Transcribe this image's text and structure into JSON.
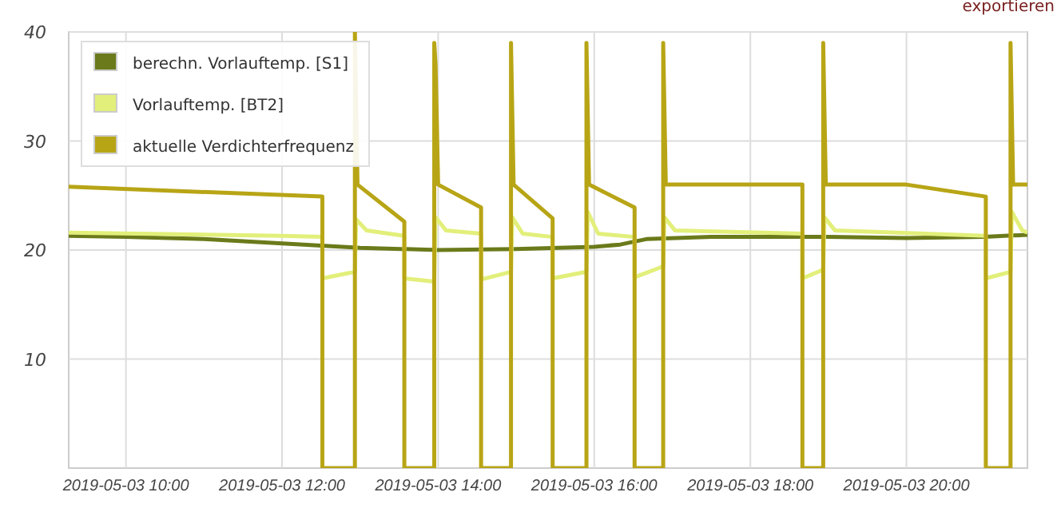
{
  "chart_data": {
    "type": "line",
    "xlim": [
      "2019-05-03T09:16",
      "2019-05-03T21:33"
    ],
    "xticks": [
      {
        "value": "2019-05-03T10:00",
        "label": "2019-05-03 10:00"
      },
      {
        "value": "2019-05-03T12:00",
        "label": "2019-05-03 12:00"
      },
      {
        "value": "2019-05-03T14:00",
        "label": "2019-05-03 14:00"
      },
      {
        "value": "2019-05-03T16:00",
        "label": "2019-05-03 16:00"
      },
      {
        "value": "2019-05-03T18:00",
        "label": "2019-05-03 18:00"
      },
      {
        "value": "2019-05-03T20:00",
        "label": "2019-05-03 20:00"
      }
    ],
    "ylim": [
      0,
      40
    ],
    "yticks": [
      10,
      20,
      30,
      40
    ],
    "grid": true,
    "legend": "top left",
    "marker": "none",
    "line_style": "solid",
    "annotations": [
      "exportieren"
    ],
    "series": [
      {
        "name": "berechn. Vorlauftemp. [S1]",
        "color": "#6b7a1a",
        "x": [
          "2019-05-03T09:16",
          "2019-05-03T10:00",
          "2019-05-03T11:00",
          "2019-05-03T12:00",
          "2019-05-03T13:00",
          "2019-05-03T14:00",
          "2019-05-03T15:00",
          "2019-05-03T16:00",
          "2019-05-03T16:20",
          "2019-05-03T16:40",
          "2019-05-03T17:30",
          "2019-05-03T18:00",
          "2019-05-03T19:00",
          "2019-05-03T20:00",
          "2019-05-03T21:00",
          "2019-05-03T21:33"
        ],
        "values": [
          21.3,
          21.2,
          21.0,
          20.6,
          20.2,
          20.0,
          20.1,
          20.3,
          20.5,
          21.0,
          21.2,
          21.2,
          21.2,
          21.1,
          21.2,
          21.4
        ]
      },
      {
        "name": "Vorlauftemp. [BT2]",
        "color": "#e2ef7a",
        "x": [
          "2019-05-03T09:16",
          "2019-05-03T12:00",
          "2019-05-03T12:31",
          "2019-05-03T12:31",
          "2019-05-03T12:56",
          "2019-05-03T12:57",
          "2019-05-03T13:05",
          "2019-05-03T13:34",
          "2019-05-03T13:34",
          "2019-05-03T13:57",
          "2019-05-03T13:58",
          "2019-05-03T14:06",
          "2019-05-03T14:33",
          "2019-05-03T14:33",
          "2019-05-03T14:56",
          "2019-05-03T14:57",
          "2019-05-03T15:05",
          "2019-05-03T15:28",
          "2019-05-03T15:28",
          "2019-05-03T15:54",
          "2019-05-03T15:55",
          "2019-05-03T16:03",
          "2019-05-03T16:31",
          "2019-05-03T16:31",
          "2019-05-03T16:53",
          "2019-05-03T16:54",
          "2019-05-03T17:02",
          "2019-05-03T18:40",
          "2019-05-03T18:40",
          "2019-05-03T18:56",
          "2019-05-03T18:57",
          "2019-05-03T19:05",
          "2019-05-03T21:01",
          "2019-05-03T21:01",
          "2019-05-03T21:20",
          "2019-05-03T21:21",
          "2019-05-03T21:29",
          "2019-05-03T21:33"
        ],
        "values": [
          21.6,
          21.3,
          21.2,
          17.4,
          18.0,
          22.8,
          21.8,
          21.3,
          17.4,
          17.1,
          23.0,
          21.8,
          21.5,
          17.3,
          18.0,
          23.0,
          21.5,
          21.2,
          17.4,
          18.0,
          23.5,
          21.5,
          21.2,
          17.5,
          18.5,
          23.0,
          21.8,
          21.5,
          17.4,
          18.2,
          23.0,
          21.8,
          21.3,
          17.4,
          18.0,
          23.5,
          21.8,
          21.6
        ]
      },
      {
        "name": "aktuelle Verdichterfrequenz",
        "color": "#b8a516",
        "x": [
          "2019-05-03T09:16",
          "2019-05-03T12:31",
          "2019-05-03T12:31",
          "2019-05-03T12:56",
          "2019-05-03T12:56",
          "2019-05-03T12:58",
          "2019-05-03T13:34",
          "2019-05-03T13:34",
          "2019-05-03T13:57",
          "2019-05-03T13:57",
          "2019-05-03T13:58",
          "2019-05-03T14:00",
          "2019-05-03T14:33",
          "2019-05-03T14:33",
          "2019-05-03T14:56",
          "2019-05-03T14:56",
          "2019-05-03T14:58",
          "2019-05-03T15:28",
          "2019-05-03T15:28",
          "2019-05-03T15:54",
          "2019-05-03T15:54",
          "2019-05-03T15:56",
          "2019-05-03T16:31",
          "2019-05-03T16:31",
          "2019-05-03T16:53",
          "2019-05-03T16:53",
          "2019-05-03T16:55",
          "2019-05-03T18:40",
          "2019-05-03T18:40",
          "2019-05-03T18:56",
          "2019-05-03T18:56",
          "2019-05-03T18:58",
          "2019-05-03T20:00",
          "2019-05-03T21:01",
          "2019-05-03T21:01",
          "2019-05-03T21:20",
          "2019-05-03T21:20",
          "2019-05-03T21:22",
          "2019-05-03T21:33"
        ],
        "values": [
          25.8,
          24.9,
          0,
          0,
          40,
          26,
          22.6,
          0,
          0,
          39,
          37,
          26,
          23.9,
          0,
          0,
          39,
          26,
          22.9,
          0,
          0,
          39,
          26,
          23.9,
          0,
          0,
          39,
          26,
          26,
          0,
          0,
          39,
          26,
          26,
          24.9,
          0,
          0,
          39,
          26,
          26
        ]
      }
    ]
  }
}
